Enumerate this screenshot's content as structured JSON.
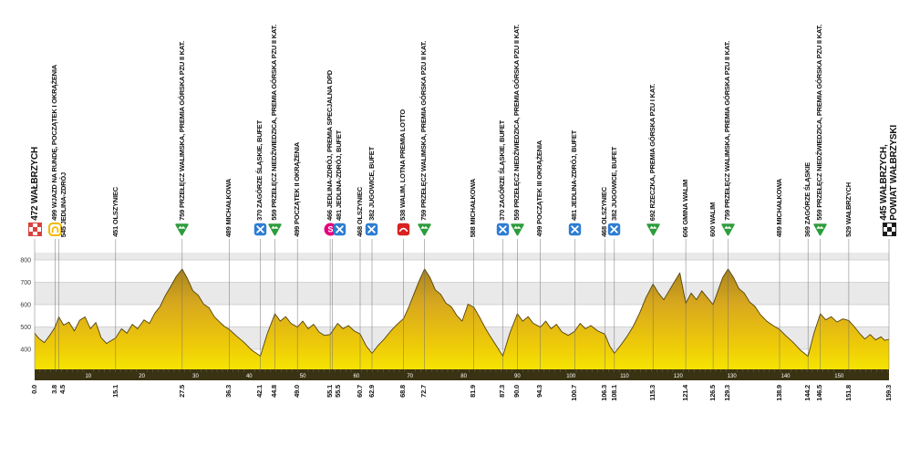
{
  "chart_data": {
    "type": "area",
    "title": "",
    "xmax_km": 159.3,
    "ylim": [
      400,
      800
    ],
    "y_ticks": [
      800,
      700,
      600,
      500,
      400
    ],
    "km_scale_ticks": [
      10,
      20,
      30,
      40,
      50,
      60,
      70,
      80,
      90,
      100,
      110,
      120,
      130,
      140,
      150
    ],
    "colors": {
      "profile_gradient": [
        "#9a781f",
        "#d8a81e",
        "#eecb08",
        "#f9ef00"
      ],
      "profile_stroke": "#55430a",
      "scale_bar": "#3a3313",
      "grid": "#b5b5b5",
      "band": "#e9e9e9",
      "marker_line": "#6f6f6f",
      "climb": "#2e9c3c",
      "buffet": "#2d7dd2",
      "sprint": "#e5007d",
      "lotto": "#d92121",
      "start": "#d9403a",
      "finish": "#1a1a1a",
      "lap": "#f3b700",
      "text": "#111111"
    },
    "markers": [
      {
        "km": 0.0,
        "km_label": "0.0",
        "label": "472 WAŁBRZYCH",
        "icon": "start-flag",
        "big": true
      },
      {
        "km": 3.8,
        "km_label": "3.8",
        "label": "499 WJAZD NA RUNDĘ, POCZĄTEK I OKRĄŻENIA",
        "icon": "lap-loop",
        "big": false
      },
      {
        "km": 4.5,
        "km_label": "4.5",
        "label": "545 JEDLINA-ZDRÓJ",
        "icon": null,
        "big": false
      },
      {
        "km": 15.1,
        "km_label": "15.1",
        "label": "451 OLSZYNIEC",
        "icon": null,
        "big": false
      },
      {
        "km": 27.5,
        "km_label": "27.5",
        "label": "759 PRZEŁĘCZ WALIMSKA, PREMIA GÓRSKA PZU II KAT.",
        "icon": "climb",
        "big": false
      },
      {
        "km": 36.3,
        "km_label": "36.3",
        "label": "489 MICHAŁKOWA",
        "icon": null,
        "big": false
      },
      {
        "km": 42.1,
        "km_label": "42.1",
        "label": "370 ZAGÓRZE ŚLĄSKIE, BUFET",
        "icon": "buffet",
        "big": false
      },
      {
        "km": 44.8,
        "km_label": "44.8",
        "label": "559 PRZEŁĘCZ NIEDŹWIEDZICA, PREMIA GÓRSKA PZU II KAT.",
        "icon": "climb",
        "big": false
      },
      {
        "km": 49.0,
        "km_label": "49.0",
        "label": "499 POCZĄTEK II OKRĄŻENIA",
        "icon": null,
        "big": false
      },
      {
        "km": 55.1,
        "km_label": "55.1",
        "label": "466 JEDLINA-ZDRÓJ, PREMIA SPECJALNA DPD",
        "icon": "sprint",
        "big": false
      },
      {
        "km": 55.5,
        "km_label": "55.5",
        "label": "481 JEDLINA-ZDRÓJ, BUFET",
        "icon": "buffet",
        "big": false
      },
      {
        "km": 60.7,
        "km_label": "60.7",
        "label": "468 OLSZYNIEC",
        "icon": null,
        "big": false
      },
      {
        "km": 62.9,
        "km_label": "62.9",
        "label": "382 JUGOWICE, BUFET",
        "icon": "buffet",
        "big": false
      },
      {
        "km": 68.8,
        "km_label": "68.8",
        "label": "538 WALIM, LOTNA PREMIA LOTTO",
        "icon": "lotto",
        "big": false
      },
      {
        "km": 72.7,
        "km_label": "72.7",
        "label": "759 PRZEŁĘCZ WALIMSKA, PREMIA GÓRSKA PZU II KAT.",
        "icon": "climb",
        "big": false
      },
      {
        "km": 81.9,
        "km_label": "81.9",
        "label": "588 MICHAŁKOWA",
        "icon": null,
        "big": false
      },
      {
        "km": 87.3,
        "km_label": "87.3",
        "label": "370 ZAGÓRZE ŚLĄSKIE, BUFET",
        "icon": "buffet",
        "big": false
      },
      {
        "km": 90.0,
        "km_label": "90.0",
        "label": "559 PRZEŁĘCZ NIEDŹWIEDZICA, PREMIA GÓRSKA PZU II KAT.",
        "icon": "climb",
        "big": false
      },
      {
        "km": 94.3,
        "km_label": "94.3",
        "label": "499 POCZĄTEK III OKRĄŻENIA",
        "icon": null,
        "big": false
      },
      {
        "km": 100.7,
        "km_label": "100.7",
        "label": "481 JEDLINA-ZDRÓJ, BUFET",
        "icon": "buffet",
        "big": false
      },
      {
        "km": 106.3,
        "km_label": "106.3",
        "label": "468 OLSZYNIEC",
        "icon": null,
        "big": false
      },
      {
        "km": 108.1,
        "km_label": "108.1",
        "label": "382 JUGOWICE, BUFET",
        "icon": "buffet",
        "big": false
      },
      {
        "km": 115.3,
        "km_label": "115.3",
        "label": "692 RZECZKA, PREMIA GÓRSKA PZU I KAT.",
        "icon": "climb",
        "big": false
      },
      {
        "km": 121.4,
        "km_label": "121.4",
        "label": "606 GMINA WALIM",
        "icon": null,
        "big": false
      },
      {
        "km": 126.5,
        "km_label": "126.5",
        "label": "600 WALIM",
        "icon": null,
        "big": false
      },
      {
        "km": 129.3,
        "km_label": "129.3",
        "label": "759 PRZEŁĘCZ WALIMSKA, PREMIA GÓRSKA PZU II KAT.",
        "icon": "climb",
        "big": false
      },
      {
        "km": 138.9,
        "km_label": "138.9",
        "label": "489 MICHAŁKOWA",
        "icon": null,
        "big": false
      },
      {
        "km": 144.2,
        "km_label": "144.2",
        "label": "369 ZAGÓRZE ŚLĄSKIE",
        "icon": null,
        "big": false
      },
      {
        "km": 146.5,
        "km_label": "146.5",
        "label": "559 PRZEŁĘCZ NIEDŹWIEDZICA, PREMIA GÓRSKA PZU II KAT.",
        "icon": "climb",
        "big": false
      },
      {
        "km": 151.8,
        "km_label": "151.8",
        "label": "529 WAŁBRZYCH",
        "icon": null,
        "big": false
      },
      {
        "km": 159.3,
        "km_label": "159.3",
        "label": "445 WAŁBRZYCH,\nPOWIAT WAŁBRZYSKI",
        "icon": "finish-flag",
        "big": true
      }
    ],
    "profile": [
      [
        0,
        472
      ],
      [
        0.8,
        448
      ],
      [
        1.8,
        430
      ],
      [
        2.8,
        462
      ],
      [
        3.8,
        499
      ],
      [
        4.5,
        545
      ],
      [
        5.4,
        508
      ],
      [
        6.4,
        522
      ],
      [
        7.4,
        482
      ],
      [
        8.4,
        530
      ],
      [
        9.4,
        545
      ],
      [
        10.4,
        492
      ],
      [
        11.4,
        520
      ],
      [
        12.4,
        452
      ],
      [
        13.4,
        426
      ],
      [
        14.2,
        438
      ],
      [
        15.1,
        451
      ],
      [
        16.2,
        492
      ],
      [
        17.2,
        472
      ],
      [
        18.2,
        512
      ],
      [
        19.2,
        492
      ],
      [
        20.4,
        532
      ],
      [
        21.4,
        516
      ],
      [
        22.4,
        562
      ],
      [
        23.4,
        592
      ],
      [
        24.4,
        642
      ],
      [
        25.4,
        682
      ],
      [
        26.4,
        726
      ],
      [
        27.5,
        759
      ],
      [
        28.5,
        716
      ],
      [
        29.5,
        662
      ],
      [
        30.5,
        642
      ],
      [
        31.5,
        602
      ],
      [
        32.5,
        586
      ],
      [
        33.5,
        546
      ],
      [
        34.5,
        522
      ],
      [
        35.4,
        502
      ],
      [
        36.3,
        489
      ],
      [
        37.5,
        462
      ],
      [
        39,
        432
      ],
      [
        40.5,
        396
      ],
      [
        42.1,
        370
      ],
      [
        43.4,
        472
      ],
      [
        44.8,
        559
      ],
      [
        45.8,
        526
      ],
      [
        46.8,
        546
      ],
      [
        47.8,
        516
      ],
      [
        49,
        499
      ],
      [
        50,
        526
      ],
      [
        51,
        492
      ],
      [
        52,
        512
      ],
      [
        53,
        478
      ],
      [
        54,
        462
      ],
      [
        55.1,
        466
      ],
      [
        55.5,
        481
      ],
      [
        56.5,
        516
      ],
      [
        57.5,
        492
      ],
      [
        58.5,
        506
      ],
      [
        59.6,
        482
      ],
      [
        60.7,
        468
      ],
      [
        61.8,
        416
      ],
      [
        62.9,
        382
      ],
      [
        64,
        416
      ],
      [
        65.2,
        446
      ],
      [
        66.4,
        482
      ],
      [
        67.6,
        512
      ],
      [
        68.8,
        538
      ],
      [
        69.8,
        592
      ],
      [
        70.8,
        652
      ],
      [
        71.8,
        712
      ],
      [
        72.7,
        759
      ],
      [
        73.7,
        722
      ],
      [
        74.7,
        666
      ],
      [
        75.7,
        646
      ],
      [
        76.7,
        606
      ],
      [
        77.7,
        590
      ],
      [
        78.7,
        552
      ],
      [
        79.7,
        526
      ],
      [
        80.8,
        602
      ],
      [
        81.9,
        588
      ],
      [
        83,
        542
      ],
      [
        84,
        496
      ],
      [
        85,
        456
      ],
      [
        86.2,
        412
      ],
      [
        87.3,
        370
      ],
      [
        88.6,
        472
      ],
      [
        90,
        559
      ],
      [
        91,
        526
      ],
      [
        92,
        546
      ],
      [
        93,
        516
      ],
      [
        94.3,
        499
      ],
      [
        95.3,
        526
      ],
      [
        96.3,
        492
      ],
      [
        97.3,
        512
      ],
      [
        98.3,
        478
      ],
      [
        99.5,
        462
      ],
      [
        100.7,
        481
      ],
      [
        101.7,
        516
      ],
      [
        102.7,
        492
      ],
      [
        103.7,
        506
      ],
      [
        105,
        482
      ],
      [
        106.3,
        468
      ],
      [
        107.2,
        416
      ],
      [
        108.1,
        382
      ],
      [
        109.2,
        416
      ],
      [
        110.4,
        456
      ],
      [
        111.6,
        502
      ],
      [
        112.8,
        562
      ],
      [
        114,
        632
      ],
      [
        115.3,
        692
      ],
      [
        116.3,
        652
      ],
      [
        117.3,
        622
      ],
      [
        118.3,
        662
      ],
      [
        119.3,
        702
      ],
      [
        120.3,
        742
      ],
      [
        121.4,
        606
      ],
      [
        122.4,
        652
      ],
      [
        123.4,
        622
      ],
      [
        124.4,
        662
      ],
      [
        125.4,
        632
      ],
      [
        126.5,
        600
      ],
      [
        127.4,
        662
      ],
      [
        128.3,
        722
      ],
      [
        129.3,
        759
      ],
      [
        130.3,
        722
      ],
      [
        131.3,
        672
      ],
      [
        132.3,
        652
      ],
      [
        133.3,
        612
      ],
      [
        134.3,
        592
      ],
      [
        135.3,
        556
      ],
      [
        136.5,
        526
      ],
      [
        137.7,
        506
      ],
      [
        138.9,
        489
      ],
      [
        140,
        462
      ],
      [
        141.4,
        432
      ],
      [
        142.8,
        396
      ],
      [
        144.2,
        369
      ],
      [
        145.3,
        472
      ],
      [
        146.5,
        559
      ],
      [
        147.5,
        532
      ],
      [
        148.5,
        546
      ],
      [
        149.6,
        522
      ],
      [
        150.7,
        536
      ],
      [
        151.8,
        529
      ],
      [
        152.8,
        502
      ],
      [
        153.8,
        472
      ],
      [
        154.8,
        446
      ],
      [
        155.8,
        466
      ],
      [
        156.8,
        442
      ],
      [
        157.8,
        456
      ],
      [
        158.5,
        440
      ],
      [
        159.3,
        445
      ]
    ]
  }
}
